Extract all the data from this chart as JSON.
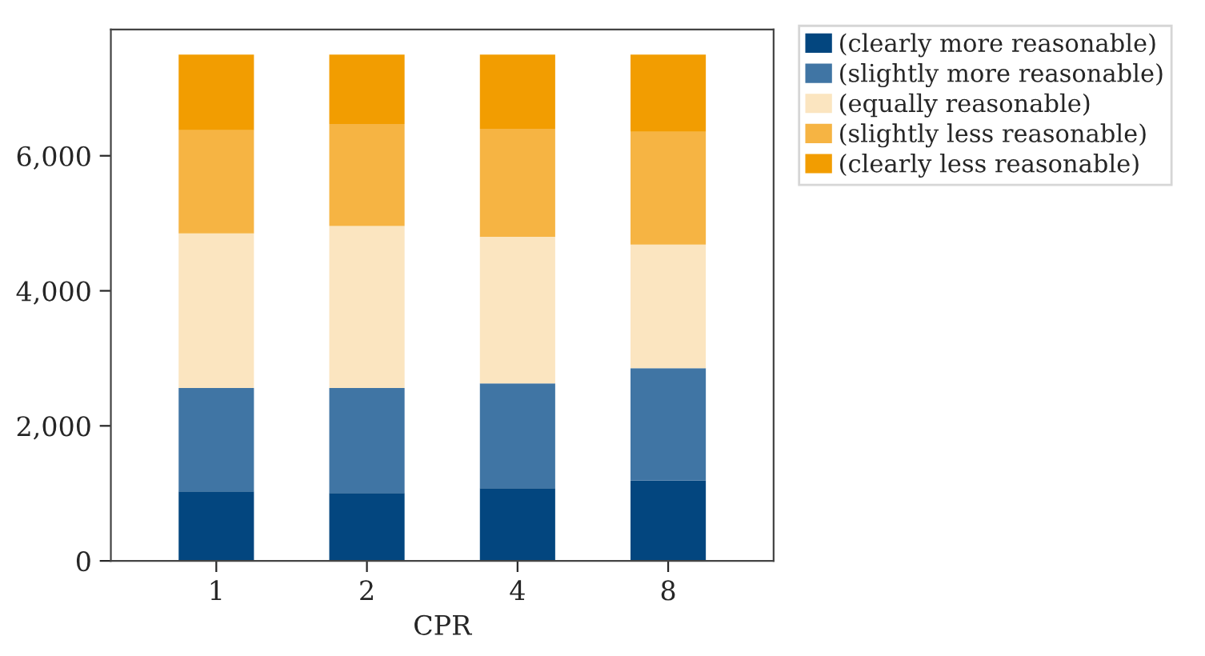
{
  "chart_data": {
    "type": "bar",
    "stacked": true,
    "xlabel": "CPR",
    "categories": [
      "1",
      "2",
      "4",
      "8"
    ],
    "series": [
      {
        "name": "(clearly more reasonable)",
        "color": "#03467f",
        "values": [
          1030,
          1005,
          1075,
          1190
        ]
      },
      {
        "name": "(slightly more reasonable)",
        "color": "#4075a4",
        "values": [
          1530,
          1555,
          1555,
          1665
        ]
      },
      {
        "name": "(equally reasonable)",
        "color": "#fbe5c0",
        "values": [
          2290,
          2400,
          2170,
          1830
        ]
      },
      {
        "name": "(slightly less reasonable)",
        "color": "#f6b443",
        "values": [
          1530,
          1510,
          1600,
          1670
        ]
      },
      {
        "name": "(clearly less reasonable)",
        "color": "#f29d01",
        "values": [
          1120,
          1030,
          1100,
          1145
        ]
      }
    ],
    "ylim": [
      0,
      7870
    ],
    "yticks": [
      0,
      {
        "value": 2000,
        "label": "2,000"
      },
      {
        "value": 4000,
        "label": "4,000"
      },
      {
        "value": 6000,
        "label": "6,000"
      }
    ],
    "grid": false,
    "legend": "top right"
  }
}
